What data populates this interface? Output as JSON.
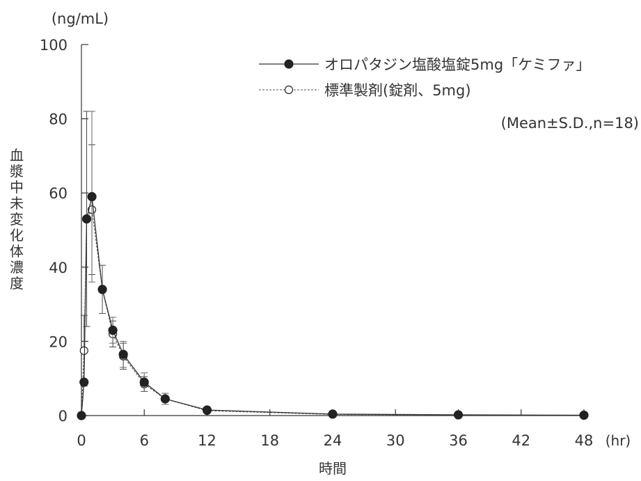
{
  "chart_data": {
    "type": "line",
    "unit_label": "(ng/mL)",
    "ylabel": "血漿中未変化体濃度",
    "xlabel": "時間",
    "x_unit": "(hr)",
    "note": "(Mean±S.D.,n=18)",
    "xlim": [
      0,
      48
    ],
    "ylim": [
      0,
      100
    ],
    "xticks": [
      0,
      6,
      12,
      18,
      24,
      30,
      36,
      42,
      48
    ],
    "yticks": [
      0,
      20,
      40,
      60,
      80,
      100
    ],
    "legend_position": "top-right",
    "grid": false,
    "series": [
      {
        "name": "オロパタジン塩酸塩錠5mg「ケミファ」",
        "marker": "filled-circle",
        "line": "solid",
        "x": [
          0,
          0.25,
          0.5,
          1,
          2,
          3,
          4,
          6,
          8,
          12,
          24,
          36,
          48
        ],
        "y": [
          0,
          9,
          53,
          59,
          34,
          23,
          16.5,
          9,
          4.5,
          1.5,
          0.4,
          0.2,
          0.1
        ],
        "sd": [
          0,
          0,
          0,
          23,
          6.5,
          3.5,
          3.5,
          2.5,
          1.5,
          0.3,
          0,
          0,
          0
        ]
      },
      {
        "name": "標準製剤(錠剤、5mg)",
        "marker": "open-circle",
        "line": "dashed",
        "x": [
          0,
          0.25,
          0.5,
          1,
          2,
          3,
          4,
          6,
          8,
          12,
          24,
          36,
          48
        ],
        "y": [
          0,
          17.5,
          53,
          55.5,
          34,
          22,
          16,
          8.5,
          4.5,
          1.3,
          0.3,
          0.1,
          0.1
        ],
        "sd": [
          0,
          9.5,
          29,
          17.5,
          6.5,
          3.5,
          3.5,
          2,
          1.5,
          0.3,
          0,
          0,
          0
        ]
      }
    ]
  }
}
